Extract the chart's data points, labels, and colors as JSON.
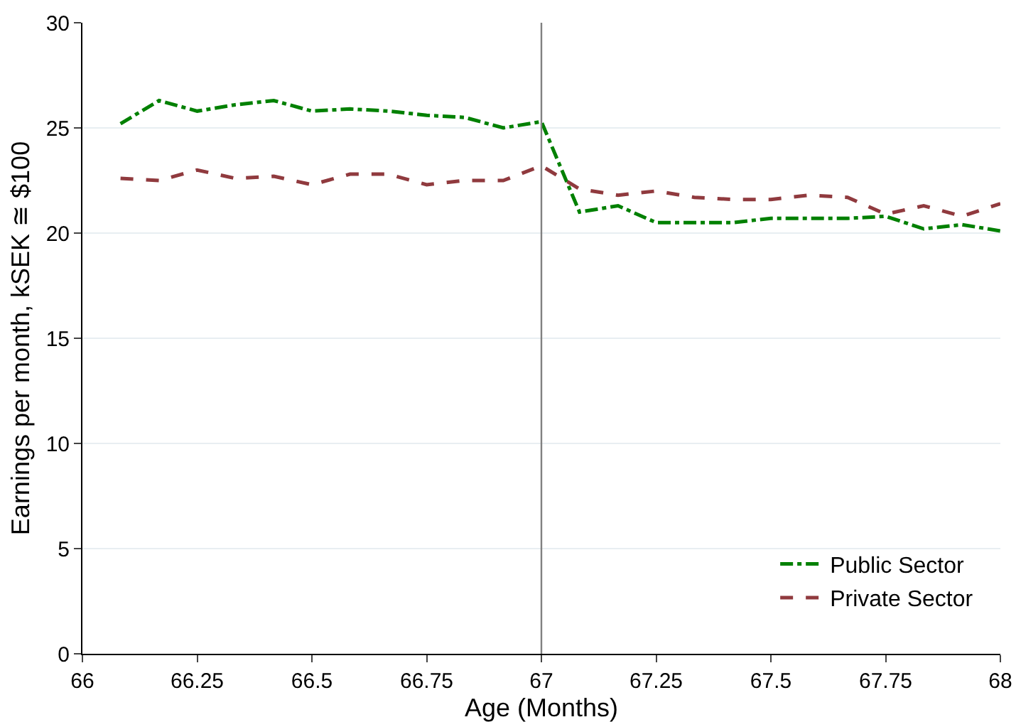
{
  "chart_data": {
    "type": "line",
    "xlabel": "Age (Months)",
    "ylabel": "Earnings per month, kSEK ≅ $100",
    "x": [
      66.083,
      66.167,
      66.25,
      66.333,
      66.417,
      66.5,
      66.583,
      66.667,
      66.75,
      66.833,
      66.917,
      67,
      67.083,
      67.167,
      67.25,
      67.333,
      67.417,
      67.5,
      67.583,
      67.667,
      67.75,
      67.833,
      67.917,
      68
    ],
    "series": [
      {
        "name": "Public Sector",
        "color": "#008000",
        "line_style": "dashdot",
        "values": [
          25.2,
          26.3,
          25.8,
          26.1,
          26.3,
          25.8,
          25.9,
          25.8,
          25.6,
          25.5,
          25.0,
          25.3,
          21.0,
          21.3,
          20.5,
          20.5,
          20.5,
          20.7,
          20.7,
          20.7,
          20.8,
          20.2,
          20.4,
          20.1
        ]
      },
      {
        "name": "Private Sector",
        "color": "#903a3e",
        "line_style": "dashed",
        "values": [
          22.6,
          22.5,
          23.0,
          22.6,
          22.7,
          22.3,
          22.8,
          22.8,
          22.3,
          22.5,
          22.5,
          23.2,
          22.1,
          21.8,
          22.0,
          21.7,
          21.6,
          21.6,
          21.8,
          21.7,
          20.9,
          21.3,
          20.8,
          21.4
        ]
      }
    ],
    "xlim": [
      66,
      68
    ],
    "xticks": [
      66,
      66.25,
      66.5,
      66.75,
      67,
      67.25,
      67.5,
      67.75,
      68
    ],
    "ylim": [
      0,
      30
    ],
    "yticks": [
      0,
      5,
      10,
      15,
      20,
      25,
      30
    ],
    "grid": "y",
    "legend": "bottom right",
    "marker": "none",
    "ref_lines": [
      {
        "axis": "x",
        "value": 67,
        "color": "#808080"
      }
    ]
  }
}
